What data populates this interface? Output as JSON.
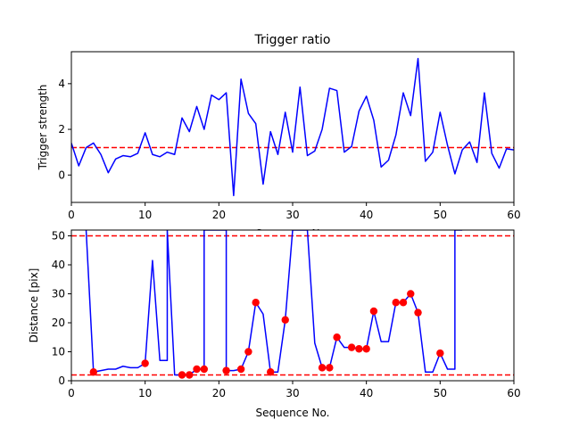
{
  "chart_data": [
    {
      "type": "line",
      "title": "Trigger ratio",
      "xlabel": "Sequence No.",
      "ylabel": "Trigger strength",
      "xlim": [
        0,
        60
      ],
      "ylim": [
        -1.2,
        5.4
      ],
      "xticks": [
        0,
        10,
        20,
        30,
        40,
        50,
        60
      ],
      "yticks": [
        0,
        2,
        4
      ],
      "grid": false,
      "series": [
        {
          "color": "#0000ff",
          "x": [
            0,
            1,
            2,
            3,
            4,
            5,
            6,
            7,
            8,
            9,
            10,
            11,
            12,
            13,
            14,
            15,
            16,
            17,
            18,
            19,
            20,
            21,
            22,
            23,
            24,
            25,
            26,
            27,
            28,
            29,
            30,
            31,
            32,
            33,
            34,
            35,
            36,
            37,
            38,
            39,
            40,
            41,
            42,
            43,
            44,
            45,
            46,
            47,
            48,
            49,
            50,
            51,
            52,
            53,
            54,
            55,
            56,
            57,
            58,
            59,
            60
          ],
          "values": [
            1.4,
            0.4,
            1.2,
            1.4,
            0.9,
            0.1,
            0.7,
            0.85,
            0.8,
            0.95,
            1.85,
            0.9,
            0.8,
            1.0,
            0.9,
            2.5,
            1.9,
            3.0,
            2.0,
            3.5,
            3.3,
            3.6,
            -0.9,
            4.2,
            2.7,
            2.25,
            -0.4,
            1.9,
            0.9,
            2.75,
            1.0,
            3.85,
            0.85,
            1.05,
            2.0,
            3.8,
            3.7,
            1.0,
            1.25,
            2.8,
            3.45,
            2.4,
            0.35,
            0.65,
            1.75,
            3.6,
            2.6,
            5.1,
            0.6,
            1.0,
            2.75,
            1.3,
            0.05,
            1.1,
            1.45,
            0.55,
            3.6,
            0.95,
            0.3,
            1.15,
            1.1
          ]
        }
      ],
      "hlines": [
        {
          "y": 1.2,
          "color": "#ff0000",
          "style": "dashed"
        }
      ]
    },
    {
      "type": "line",
      "title": "",
      "xlabel": "Sequence No.",
      "ylabel": "Distance [pix]",
      "xlim": [
        0,
        60
      ],
      "ylim": [
        0,
        52
      ],
      "xticks": [
        0,
        10,
        20,
        30,
        40,
        50,
        60
      ],
      "yticks": [
        0,
        10,
        20,
        30,
        40,
        50
      ],
      "grid": false,
      "series": [
        {
          "color": "#0000ff",
          "x": [
            2,
            3,
            4,
            5,
            6,
            7,
            8,
            9,
            10,
            11,
            12,
            13,
            13,
            14,
            15,
            16,
            17,
            18,
            18,
            19,
            21,
            21,
            22,
            23,
            24,
            25,
            26,
            27,
            28,
            29,
            30,
            32,
            33,
            34,
            35,
            36,
            37,
            38,
            39,
            40,
            41,
            42,
            43,
            44,
            45,
            46,
            47,
            48,
            49,
            50,
            51,
            52,
            52,
            53
          ],
          "values": [
            52,
            3,
            3.5,
            4,
            4,
            5,
            4.5,
            4.5,
            6,
            41.5,
            7,
            7,
            52,
            2,
            2,
            2,
            4,
            4,
            52,
            52,
            52,
            3.5,
            3.5,
            4,
            10,
            27,
            23,
            3,
            3,
            21,
            52,
            52,
            13,
            4.5,
            4.5,
            15,
            11.5,
            11.5,
            11,
            11,
            24,
            13.5,
            13.5,
            27,
            27,
            30,
            23.5,
            3,
            3,
            9.5,
            4,
            4,
            52,
            52
          ]
        }
      ],
      "markers": {
        "color": "#ff0000",
        "x": [
          3,
          10,
          15,
          16,
          17,
          18,
          21,
          23,
          24,
          25,
          27,
          29,
          34,
          35,
          36,
          38,
          39,
          40,
          41,
          44,
          45,
          46,
          47,
          50
        ],
        "values": [
          3,
          6,
          2,
          2,
          4,
          4,
          3.5,
          4,
          10,
          27,
          3,
          21,
          4.5,
          4.5,
          15,
          11.5,
          11,
          11,
          24,
          27,
          27,
          30,
          23.5,
          9.5
        ]
      },
      "hlines": [
        {
          "y": 50,
          "color": "#ff0000",
          "style": "dashed"
        },
        {
          "y": 2,
          "color": "#ff0000",
          "style": "dashed"
        }
      ]
    }
  ]
}
